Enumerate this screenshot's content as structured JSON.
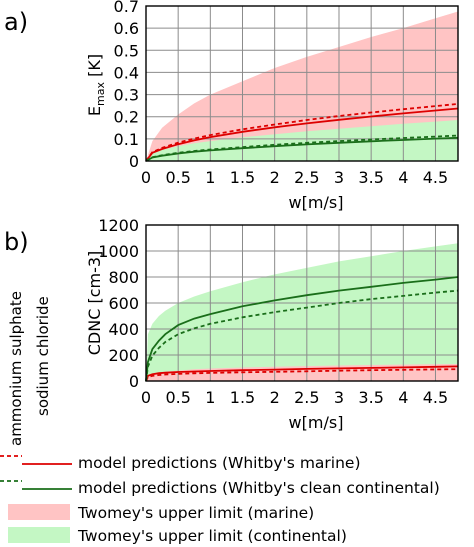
{
  "panel_labels": [
    "a)",
    "b)"
  ],
  "side_labels": [
    "ammonium sulphate",
    "sodium chloride"
  ],
  "legend": [
    {
      "label": "model predictions (Whitby's marine)",
      "kind": "lines",
      "color": "#dd0000"
    },
    {
      "label": "model predictions (Whitby's clean continental)",
      "kind": "lines",
      "color": "#1a6e1a"
    },
    {
      "label": "Twomey's upper limit (marine)",
      "kind": "fill",
      "color": "#ffc4c4"
    },
    {
      "label": "Twomey's upper limit (continental)",
      "kind": "fill",
      "color": "#c4f7c4"
    }
  ],
  "colors": {
    "marine_line": "#dd0000",
    "marine_fill": "#ffc4c4",
    "continental_line": "#1a6e1a",
    "continental_fill": "#c4f7c4",
    "grid": "#8c8c8c"
  },
  "chart_data": [
    {
      "type": "area",
      "panel": "a)",
      "xlabel": "w[m/s]",
      "ylabel_main": "E",
      "ylabel_sub": "max",
      "ylabel_unit": " [K]",
      "xlim": [
        0,
        4.85
      ],
      "ylim": [
        0,
        0.7
      ],
      "xticks": [
        0,
        0.5,
        1,
        1.5,
        2,
        2.5,
        3,
        3.5,
        4,
        4.5
      ],
      "xtick_labels": [
        "0",
        "0.5",
        "1",
        "1.5",
        "2",
        "2.5",
        "3",
        "3.5",
        "4",
        "4.5"
      ],
      "yticks": [
        0,
        0.1,
        0.2,
        0.3,
        0.4,
        0.5,
        0.6,
        0.7
      ],
      "ytick_labels": [
        "0",
        "0.1",
        "0.2",
        "0.3",
        "0.4",
        "0.5",
        "0.6",
        "0.7"
      ],
      "grid": true,
      "x": [
        0,
        0.1,
        0.25,
        0.5,
        0.75,
        1,
        1.5,
        2,
        2.5,
        3,
        3.5,
        4,
        4.5,
        4.85
      ],
      "bands": [
        {
          "name": "Twomey's upper limit (marine)",
          "color_key": "marine_fill",
          "lower": [
            0,
            0.024,
            0.04,
            0.055,
            0.066,
            0.075,
            0.09,
            0.102,
            0.112,
            0.121,
            0.13,
            0.138,
            0.145,
            0.15
          ],
          "upper": [
            0,
            0.09,
            0.15,
            0.21,
            0.26,
            0.3,
            0.36,
            0.42,
            0.47,
            0.515,
            0.56,
            0.6,
            0.645,
            0.675
          ]
        },
        {
          "name": "Twomey's upper limit (continental)",
          "color_key": "continental_fill",
          "lower": [
            0,
            0,
            0,
            0,
            0,
            0,
            0,
            0,
            0,
            0,
            0,
            0,
            0,
            0
          ],
          "upper": [
            0,
            0.035,
            0.05,
            0.067,
            0.08,
            0.09,
            0.107,
            0.121,
            0.134,
            0.146,
            0.157,
            0.168,
            0.178,
            0.185
          ]
        }
      ],
      "lines": [
        {
          "name": "ammonium sulphate, Whitby's marine",
          "color_key": "marine_line",
          "dash": true,
          "values": [
            0,
            0.04,
            0.059,
            0.083,
            0.101,
            0.117,
            0.143,
            0.165,
            0.185,
            0.203,
            0.219,
            0.234,
            0.248,
            0.258
          ]
        },
        {
          "name": "sodium chloride, Whitby's marine",
          "color_key": "marine_line",
          "dash": false,
          "values": [
            0,
            0.037,
            0.054,
            0.076,
            0.093,
            0.108,
            0.132,
            0.152,
            0.17,
            0.186,
            0.201,
            0.215,
            0.228,
            0.237
          ]
        },
        {
          "name": "ammonium sulphate, Whitby's clean continental",
          "color_key": "continental_line",
          "dash": true,
          "values": [
            0,
            0.017,
            0.026,
            0.037,
            0.045,
            0.052,
            0.063,
            0.073,
            0.082,
            0.09,
            0.097,
            0.104,
            0.11,
            0.115
          ]
        },
        {
          "name": "sodium chloride, Whitby's clean continental",
          "color_key": "continental_line",
          "dash": false,
          "values": [
            0,
            0.016,
            0.024,
            0.034,
            0.042,
            0.048,
            0.058,
            0.067,
            0.075,
            0.082,
            0.089,
            0.095,
            0.101,
            0.105
          ]
        }
      ]
    },
    {
      "type": "area",
      "panel": "b)",
      "xlabel": "w[m/s]",
      "ylabel_main": "CDNC [cm-3]",
      "ylabel_sub": "",
      "ylabel_unit": "",
      "xlim": [
        0,
        4.85
      ],
      "ylim": [
        0,
        1200
      ],
      "xticks": [
        0,
        0.5,
        1,
        1.5,
        2,
        2.5,
        3,
        3.5,
        4,
        4.5
      ],
      "xtick_labels": [
        "0",
        "0.5",
        "1",
        "1.5",
        "2",
        "2.5",
        "3",
        "3.5",
        "4",
        "4.5"
      ],
      "yticks": [
        0,
        200,
        400,
        600,
        800,
        1000,
        1200
      ],
      "ytick_labels": [
        "0",
        "200",
        "400",
        "600",
        "800",
        "1000",
        "1200"
      ],
      "grid": true,
      "x": [
        0,
        0.03,
        0.1,
        0.2,
        0.3,
        0.5,
        0.75,
        1,
        1.5,
        2,
        2.5,
        3,
        3.5,
        4,
        4.5,
        4.85
      ],
      "bands": [
        {
          "name": "Twomey's upper limit (continental)",
          "color_key": "continental_fill",
          "lower": [
            0,
            0,
            0,
            0,
            0,
            0,
            0,
            0,
            0,
            0,
            0,
            0,
            0,
            0,
            0,
            0
          ],
          "upper": [
            0,
            360,
            440,
            500,
            540,
            600,
            650,
            690,
            760,
            820,
            870,
            920,
            960,
            1000,
            1035,
            1060
          ]
        },
        {
          "name": "Twomey's upper limit (marine)",
          "color_key": "marine_fill",
          "lower": [
            0,
            0,
            0,
            0,
            0,
            0,
            0,
            0,
            0,
            0,
            0,
            0,
            0,
            0,
            0,
            0
          ],
          "upper": [
            0,
            40,
            55,
            65,
            72,
            80,
            90,
            96,
            104,
            110,
            115,
            119,
            123,
            126,
            129,
            131
          ]
        }
      ],
      "lines": [
        {
          "name": "ammonium sulphate, Whitby's marine",
          "color_key": "marine_line",
          "dash": true,
          "values": [
            0,
            30,
            40,
            46,
            50,
            55,
            59,
            62,
            67,
            71,
            75,
            79,
            83,
            86,
            89,
            91
          ]
        },
        {
          "name": "sodium chloride, Whitby's marine",
          "color_key": "marine_line",
          "dash": false,
          "values": [
            0,
            40,
            52,
            60,
            64,
            69,
            73,
            77,
            83,
            88,
            93,
            97,
            101,
            105,
            109,
            112
          ]
        },
        {
          "name": "ammonium sulphate, Whitby's clean continental",
          "color_key": "continental_line",
          "dash": true,
          "values": [
            0,
            110,
            195,
            255,
            300,
            360,
            405,
            440,
            490,
            530,
            565,
            600,
            630,
            655,
            680,
            695
          ]
        },
        {
          "name": "sodium chloride, Whitby's clean continental",
          "color_key": "continental_line",
          "dash": false,
          "values": [
            0,
            145,
            245,
            310,
            360,
            430,
            480,
            515,
            575,
            620,
            660,
            695,
            725,
            755,
            780,
            800
          ]
        }
      ]
    }
  ]
}
